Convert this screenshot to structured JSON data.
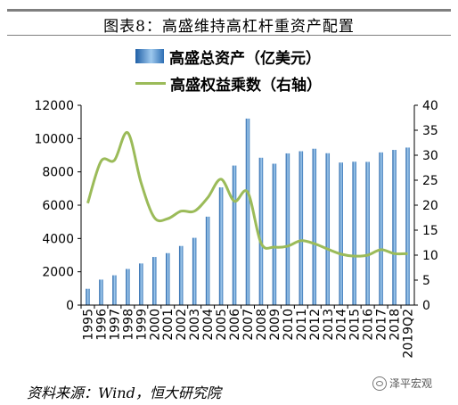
{
  "title": "图表8：高盛维持高杠杆重资产配置",
  "source": "资料来源：Wind，恒大研究院",
  "watermark": "泽平宏观",
  "chart_data": {
    "type": "bar",
    "categories": [
      "1995",
      "1996",
      "1997",
      "1998",
      "1999",
      "2000",
      "2001",
      "2002",
      "2003",
      "2004",
      "2005",
      "2006",
      "2007",
      "2008",
      "2009",
      "2010",
      "2011",
      "2012",
      "2013",
      "2014",
      "2015",
      "2016",
      "2017",
      "2018",
      "2019Q2"
    ],
    "series": [
      {
        "name": "高盛总资产（亿美元）",
        "type": "bar",
        "axis": "left",
        "color": "#4a8cd0",
        "values": [
          980,
          1530,
          1790,
          2170,
          2500,
          2890,
          3120,
          3550,
          4040,
          5310,
          7070,
          8380,
          11200,
          8850,
          8490,
          9110,
          9240,
          9390,
          9120,
          8560,
          8610,
          8600,
          9170,
          9320,
          9460
        ]
      },
      {
        "name": "高盛权益乘数（右轴）",
        "type": "line",
        "axis": "right",
        "color": "#9bbb59",
        "values": [
          20.4,
          28.8,
          29.0,
          34.5,
          24.5,
          17.5,
          17.3,
          18.8,
          18.8,
          21.5,
          25.2,
          20.8,
          22.6,
          12.4,
          11.6,
          11.8,
          12.9,
          12.3,
          11.2,
          10.2,
          9.8,
          10.0,
          11.1,
          10.3,
          10.3
        ]
      }
    ],
    "yaxis_left": {
      "min": 0,
      "max": 12000,
      "ticks": [
        "0",
        "2000",
        "4000",
        "6000",
        "8000",
        "10000",
        "12000"
      ]
    },
    "yaxis_right": {
      "min": 0,
      "max": 40,
      "ticks": [
        "0",
        "5",
        "10",
        "15",
        "20",
        "25",
        "30",
        "35",
        "40"
      ]
    },
    "grid": false,
    "legend": "top-center"
  }
}
